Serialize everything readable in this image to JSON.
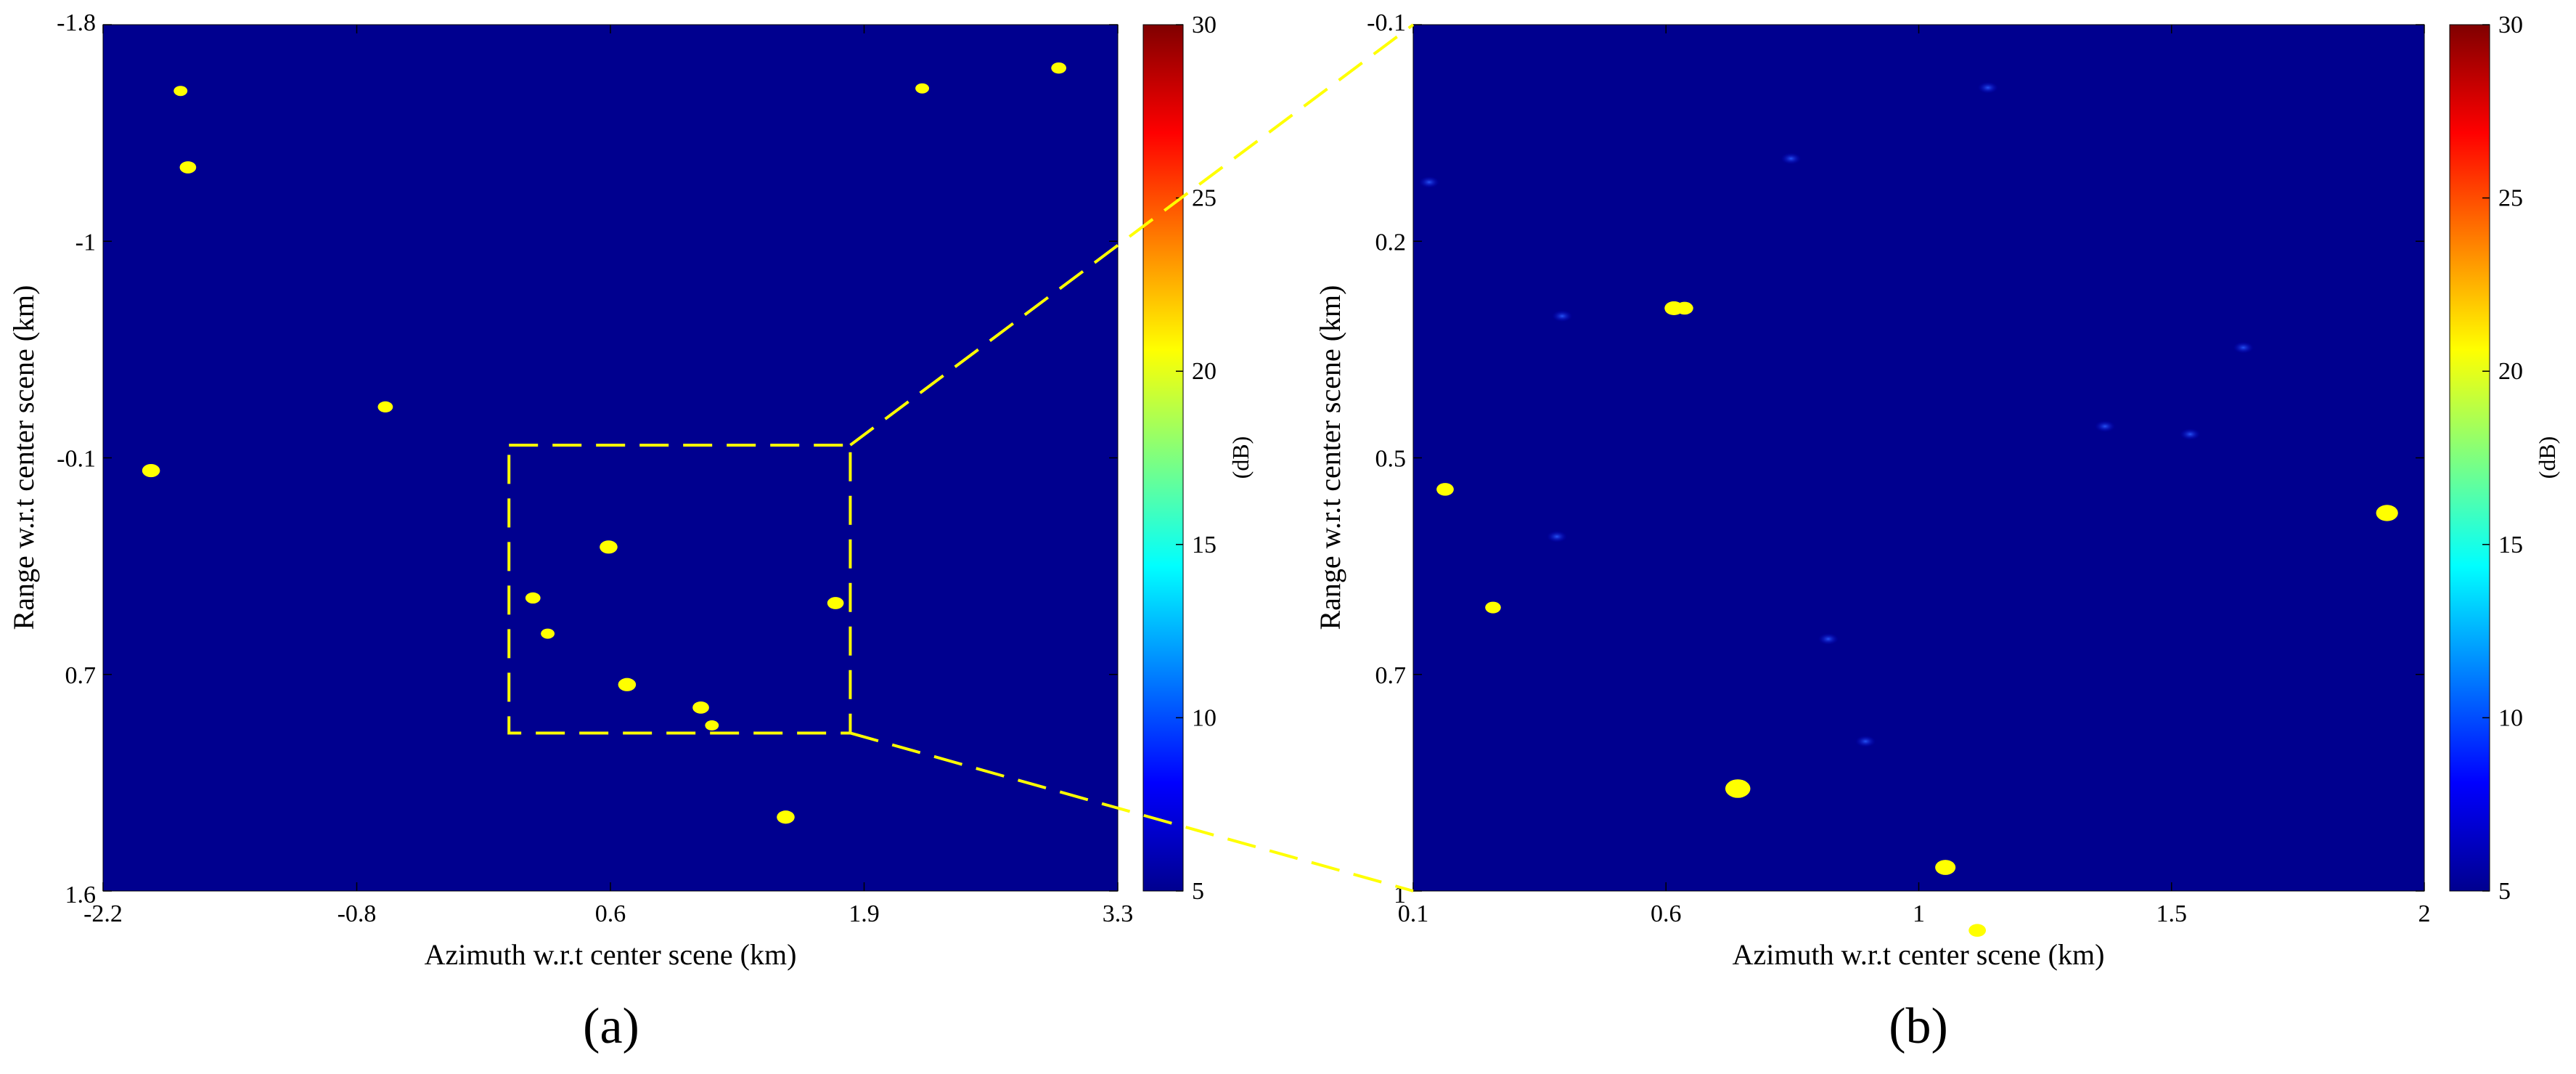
{
  "chart_data": [
    {
      "type": "scatter",
      "panel_label": "(a)",
      "xlabel": "Azimuth w.r.t center scene (km)",
      "ylabel": "Range w.r.t center scene (km)",
      "xlim": [
        -2.2,
        3.3
      ],
      "ylim": [
        -1.8,
        1.6
      ],
      "y_inverted": true,
      "x_ticks": [
        "-2.2",
        "-0.8",
        "0.6",
        "1.9",
        "3.3"
      ],
      "y_ticks": [
        "-1.8",
        "-1",
        "-0.1",
        "0.7",
        "1.6"
      ],
      "background_color": "#00008f",
      "target_color": "#ffff00",
      "colorbar": {
        "label": "(dB)",
        "min": 5,
        "max": 30,
        "ticks": [
          "5",
          "10",
          "15",
          "20",
          "25",
          "30"
        ]
      },
      "zoom_box": {
        "x": [
          0.0,
          1.85
        ],
        "y": [
          -0.15,
          0.98
        ],
        "color": "#ffff00"
      },
      "points": [
        {
          "x": -1.78,
          "y": -1.54,
          "size": 1.0
        },
        {
          "x": -1.74,
          "y": -1.24,
          "size": 1.2
        },
        {
          "x": 2.24,
          "y": -1.55,
          "size": 1.0
        },
        {
          "x": 2.98,
          "y": -1.63,
          "size": 1.1
        },
        {
          "x": -0.67,
          "y": -0.3,
          "size": 1.1
        },
        {
          "x": -1.94,
          "y": -0.05,
          "size": 1.3
        },
        {
          "x": 0.54,
          "y": 0.25,
          "size": 1.3
        },
        {
          "x": 0.13,
          "y": 0.45,
          "size": 1.1
        },
        {
          "x": 0.21,
          "y": 0.59,
          "size": 1.0
        },
        {
          "x": 0.64,
          "y": 0.79,
          "size": 1.3
        },
        {
          "x": 1.04,
          "y": 0.88,
          "size": 1.2
        },
        {
          "x": 1.1,
          "y": 0.95,
          "size": 1.0
        },
        {
          "x": 1.77,
          "y": 0.47,
          "size": 1.2
        },
        {
          "x": 1.5,
          "y": 1.31,
          "size": 1.3
        }
      ]
    },
    {
      "type": "scatter",
      "panel_label": "(b)",
      "xlabel": "Azimuth w.r.t center scene (km)",
      "ylabel": "Range w.r.t center scene (km)",
      "xlim": [
        0.1,
        2.0
      ],
      "ylim": [
        -0.1,
        1.0
      ],
      "y_inverted": true,
      "x_ticks": [
        "0.1",
        "0.6",
        "1",
        "1.5",
        "2"
      ],
      "y_ticks": [
        "-0.1",
        "0.2",
        "0.5",
        "0.7",
        "1"
      ],
      "background_color": "#00008f",
      "target_color": "#ffff00",
      "colorbar": {
        "label": "(dB)",
        "min": 5,
        "max": 30,
        "ticks": [
          "5",
          "10",
          "15",
          "20",
          "25",
          "30"
        ]
      },
      "points": [
        {
          "x": 0.59,
          "y": 0.26,
          "size": 1.2
        },
        {
          "x": 0.61,
          "y": 0.26,
          "size": 1.1
        },
        {
          "x": 0.16,
          "y": 0.49,
          "size": 1.1
        },
        {
          "x": 0.25,
          "y": 0.64,
          "size": 1.0
        },
        {
          "x": 1.93,
          "y": 0.52,
          "size": 1.4
        },
        {
          "x": 0.71,
          "y": 0.87,
          "size": 1.6
        },
        {
          "x": 1.1,
          "y": 0.97,
          "size": 1.3
        },
        {
          "x": 1.16,
          "y": 1.05,
          "size": 1.1
        }
      ],
      "faint_speckles": [
        {
          "x": 0.37,
          "y": 0.55
        },
        {
          "x": 0.81,
          "y": 0.07
        },
        {
          "x": 1.18,
          "y": -0.02
        },
        {
          "x": 1.4,
          "y": 0.41
        },
        {
          "x": 1.56,
          "y": 0.42
        },
        {
          "x": 1.66,
          "y": 0.31
        },
        {
          "x": 0.95,
          "y": 0.81
        },
        {
          "x": 0.88,
          "y": 0.68
        },
        {
          "x": 0.38,
          "y": 0.27
        },
        {
          "x": 0.13,
          "y": 0.1
        }
      ]
    }
  ]
}
